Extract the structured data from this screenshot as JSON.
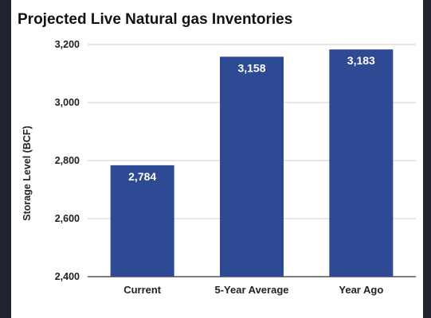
{
  "chart_data": {
    "type": "bar",
    "title": "Projected Live Natural gas Inventories",
    "xlabel": "",
    "ylabel": "Storage Level (BCF)",
    "categories": [
      "Current",
      "5-Year Average",
      "Year Ago"
    ],
    "values": [
      2784,
      3158,
      3183
    ],
    "data_labels": [
      "2,784",
      "3,158",
      "3,183"
    ],
    "ylim": [
      2400,
      3200
    ],
    "yticks": [
      2400,
      2600,
      2800,
      3000,
      3200
    ],
    "ytick_labels": [
      "2,400",
      "2,600",
      "2,800",
      "3,000",
      "3,200"
    ],
    "grid": true,
    "legend": "none",
    "bar_color": "#2e4a94",
    "label_color": "#ffffff"
  }
}
